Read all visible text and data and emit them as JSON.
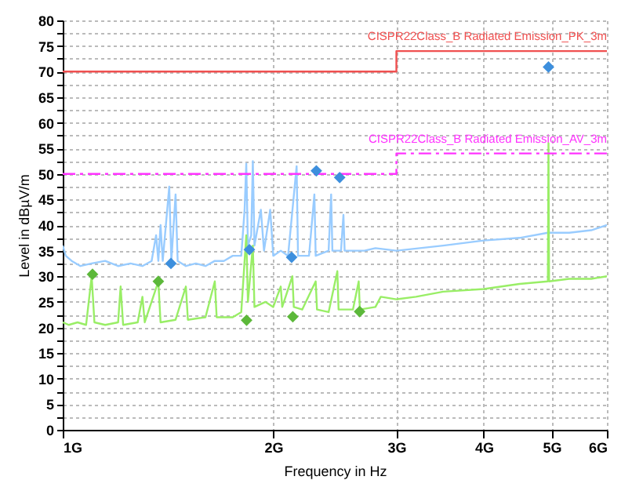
{
  "chart_data": {
    "type": "line",
    "xlabel": "Frequency in Hz",
    "ylabel": "Level in dBµV/m",
    "log": "x",
    "grid": true,
    "legend": false,
    "xlim": [
      1,
      6
    ],
    "xticks": [
      {
        "value": 1,
        "label": "1G"
      },
      {
        "value": 2,
        "label": "2G"
      },
      {
        "value": 3,
        "label": "3G"
      },
      {
        "value": 4,
        "label": "4G"
      },
      {
        "value": 5,
        "label": "5G"
      },
      {
        "value": 6,
        "label": "6G"
      }
    ],
    "ylim": [
      0,
      80
    ],
    "yticks": [
      0,
      {
        "value": 2.5,
        "label": null
      },
      5,
      {
        "value": 7.5,
        "label": null
      },
      10,
      {
        "value": 12.5,
        "label": null
      },
      15,
      {
        "value": 17.5,
        "label": null
      },
      20,
      {
        "value": 22.5,
        "label": null
      },
      25,
      {
        "value": 27.5,
        "label": null
      },
      30,
      {
        "value": 32.5,
        "label": null
      },
      35,
      {
        "value": 37.5,
        "label": null
      },
      40,
      {
        "value": 42.5,
        "label": null
      },
      45,
      {
        "value": 47.5,
        "label": null
      },
      50,
      {
        "value": 52.5,
        "label": null
      },
      55,
      {
        "value": 57.5,
        "label": null
      },
      60,
      {
        "value": 62.5,
        "label": null
      },
      65,
      {
        "value": 67.5,
        "label": null
      },
      70,
      {
        "value": 72.5,
        "label": null
      },
      75,
      {
        "value": 77.5,
        "label": null
      },
      80
    ],
    "series": [
      {
        "color": "#99ccff",
        "x": [
          1.0,
          1.01,
          1.03,
          1.06,
          1.1,
          1.15,
          1.2,
          1.25,
          1.3,
          1.34,
          1.36,
          1.37,
          1.38,
          1.39,
          1.42,
          1.43,
          1.45,
          1.46,
          1.5,
          1.55,
          1.6,
          1.65,
          1.7,
          1.75,
          1.8,
          1.82,
          1.83,
          1.84,
          1.86,
          1.87,
          1.88,
          1.92,
          1.94,
          1.98,
          2.0,
          2.05,
          2.1,
          2.16,
          2.17,
          2.25,
          2.29,
          2.3,
          2.4,
          2.42,
          2.43,
          2.5,
          2.52,
          2.53,
          2.6,
          2.7,
          2.8,
          3.0,
          3.5,
          4.0,
          4.5,
          4.94,
          4.95,
          4.96,
          5.3,
          5.7,
          6.0
        ],
        "values": [
          36,
          34,
          33,
          32,
          32.5,
          33,
          32,
          32.5,
          32,
          33,
          38,
          33,
          40,
          33,
          47.5,
          33,
          46,
          33,
          32,
          32.5,
          32,
          33,
          33,
          34,
          34,
          43,
          52,
          36,
          38,
          52.5,
          36,
          43,
          35,
          43,
          34,
          35,
          34,
          51.5,
          34,
          34,
          46,
          34,
          35,
          46,
          35,
          35,
          42,
          35,
          35,
          35,
          35.5,
          35,
          36,
          37,
          37.5,
          38.5,
          null,
          38.5,
          38.5,
          39,
          40
        ]
      },
      {
        "color": "#99ee66",
        "x": [
          1.0,
          1.02,
          1.05,
          1.08,
          1.1,
          1.11,
          1.15,
          1.2,
          1.21,
          1.22,
          1.28,
          1.3,
          1.31,
          1.37,
          1.38,
          1.45,
          1.5,
          1.51,
          1.6,
          1.65,
          1.66,
          1.75,
          1.8,
          1.83,
          1.84,
          1.87,
          1.88,
          1.95,
          2.0,
          2.05,
          2.06,
          2.13,
          2.14,
          2.2,
          2.3,
          2.31,
          2.4,
          2.47,
          2.48,
          2.6,
          2.65,
          2.66,
          2.8,
          2.85,
          3.0,
          3.2,
          3.5,
          4.0,
          4.5,
          4.94,
          4.95,
          4.96,
          5.3,
          5.7,
          6.0
        ],
        "values": [
          21,
          20.5,
          21,
          20.5,
          30,
          21,
          20.5,
          21,
          28,
          20.5,
          21,
          26,
          21,
          29,
          21,
          21.5,
          28,
          21.5,
          22,
          29,
          22,
          22,
          23,
          38,
          25,
          36,
          24,
          25,
          24,
          28,
          24,
          30,
          24,
          23.5,
          29,
          23.5,
          23,
          31,
          23.5,
          23.5,
          29,
          23.5,
          24,
          26,
          25.5,
          26,
          27,
          27.5,
          28.5,
          29,
          56,
          29,
          29.5,
          29.5,
          30
        ]
      },
      {
        "type": "step",
        "name": "CISPR22Class_B Radiated Emission_PK_3m",
        "color": "#f05050",
        "line_style": "solid",
        "x": [
          1,
          3,
          6
        ],
        "values": [
          70,
          74,
          74
        ]
      },
      {
        "type": "step",
        "name": "CISPR22Class_B Radiated Emission_AV_3m",
        "color": "#ff33ff",
        "line_style": "dashed",
        "x": [
          1,
          3,
          6
        ],
        "values": [
          50,
          54,
          54
        ]
      },
      {
        "type": "scatter",
        "marker": "diamond",
        "color": "#3d8fdd",
        "x": [
          1.428,
          1.849,
          2.125,
          2.305,
          2.489,
          4.95
        ],
        "values": [
          32.5,
          35.2,
          33.7,
          50.6,
          49.3,
          70.9
        ]
      },
      {
        "type": "scatter",
        "marker": "diamond",
        "color": "#5cb83a",
        "x": [
          1.103,
          1.37,
          1.832,
          2.133,
          2.658
        ],
        "values": [
          30.4,
          29.0,
          21.4,
          22.1,
          23.1
        ]
      }
    ]
  }
}
